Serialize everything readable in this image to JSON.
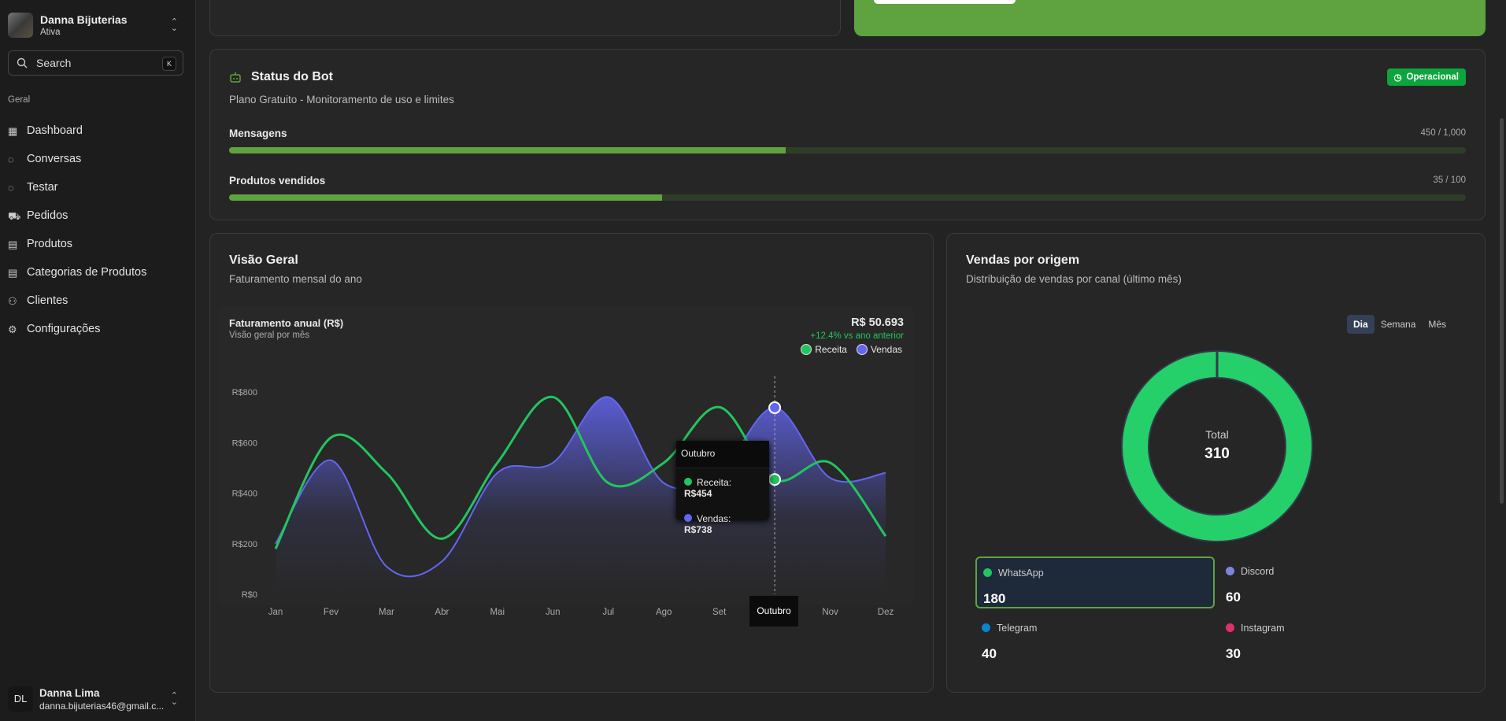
{
  "workspace": {
    "name": "Danna Bijuterias",
    "status": "Ativa"
  },
  "search": {
    "placeholder": "Search",
    "shortcut": "K"
  },
  "sidebar": {
    "group": "Geral",
    "items": [
      {
        "label": "Dashboard",
        "icon": "dashboard-icon"
      },
      {
        "label": "Conversas",
        "icon": "chat-icon"
      },
      {
        "label": "Testar",
        "icon": "chat-icon"
      },
      {
        "label": "Pedidos",
        "icon": "cart-icon"
      },
      {
        "label": "Produtos",
        "icon": "receipt-icon"
      },
      {
        "label": "Categorias de Produtos",
        "icon": "receipt-icon"
      },
      {
        "label": "Clientes",
        "icon": "users-icon"
      },
      {
        "label": "Configurações",
        "icon": "gear-icon"
      }
    ]
  },
  "user": {
    "initials": "DL",
    "name": "Danna Lima",
    "email": "danna.bijuterias46@gmail.c..."
  },
  "bot": {
    "title": "Status do Bot",
    "subtitle": "Plano Gratuito - Monitoramento de uso e limites",
    "status": "Operacional",
    "usage": [
      {
        "label": "Mensagens",
        "value_text": "450 / 1,000",
        "fraction": 0.45
      },
      {
        "label": "Produtos vendidos",
        "value_text": "35 / 100",
        "fraction": 0.35
      }
    ]
  },
  "overview": {
    "title": "Visão Geral",
    "subtitle": "Faturamento mensal do ano"
  },
  "sales": {
    "title": "Vendas por origem",
    "subtitle": "Distribuição de vendas por canal (último mês)",
    "tabs": [
      "Dia",
      "Semana",
      "Mês"
    ],
    "total_label": "Total",
    "total": "310",
    "channels": [
      {
        "name": "WhatsApp",
        "value": "180",
        "color": "#22c55e"
      },
      {
        "name": "Discord",
        "value": "60",
        "color": "#7c86d8"
      },
      {
        "name": "Telegram",
        "value": "40",
        "color": "#0a84d0"
      },
      {
        "name": "Instagram",
        "value": "30",
        "color": "#e0306a"
      }
    ]
  },
  "chart_data": [
    {
      "type": "line",
      "title": "Faturamento anual (R$)",
      "subtitle": "Visão geral por mês",
      "total": "R$ 50.693",
      "change": "+12.4% vs ano anterior",
      "categories": [
        "Jan",
        "Fev",
        "Mar",
        "Abr",
        "Mai",
        "Jun",
        "Jul",
        "Ago",
        "Set",
        "Out",
        "Nov",
        "Dez"
      ],
      "highlight_label": "Outubro",
      "yticks": [
        "R$0",
        "R$200",
        "R$400",
        "R$600",
        "R$800"
      ],
      "ylim": [
        0,
        800
      ],
      "series": [
        {
          "name": "Receita",
          "color": "#22c55e",
          "values": [
            180,
            620,
            480,
            220,
            520,
            780,
            440,
            520,
            740,
            454,
            520,
            230
          ]
        },
        {
          "name": "Vendas",
          "color": "#6366f1",
          "values": [
            200,
            530,
            110,
            130,
            480,
            520,
            780,
            440,
            480,
            738,
            460,
            480
          ]
        }
      ],
      "tooltip": {
        "title": "Outubro",
        "rows": [
          {
            "label": "Receita:",
            "value": "R$454"
          },
          {
            "label": "Vendas:",
            "value": "R$738"
          }
        ]
      }
    },
    {
      "type": "pie",
      "title": "Vendas por origem",
      "categories": [
        "WhatsApp",
        "Discord",
        "Telegram",
        "Instagram"
      ],
      "values": [
        180,
        60,
        40,
        30
      ]
    }
  ]
}
